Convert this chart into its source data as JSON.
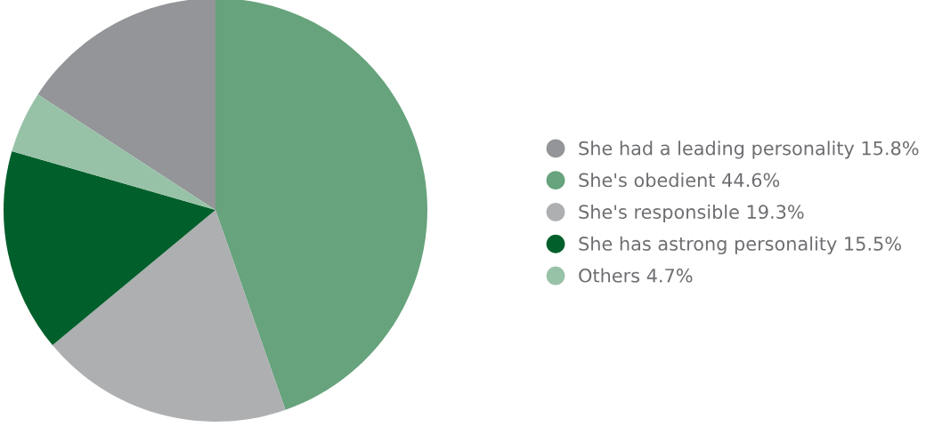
{
  "chart_data": {
    "type": "pie",
    "categories": [
      "She had a leading personality",
      "She's obedient",
      "She's responsible",
      "She has astrong personality",
      "Others"
    ],
    "values": [
      15.8,
      44.6,
      19.3,
      15.5,
      4.7
    ],
    "value_labels": [
      "15.8%",
      "44.6%",
      "19.3%",
      "15.5%",
      "4.7%"
    ],
    "colors": [
      "#939598",
      "#67a37c",
      "#adafb1",
      "#005f2a",
      "#98c2a8"
    ],
    "legend": "right"
  }
}
